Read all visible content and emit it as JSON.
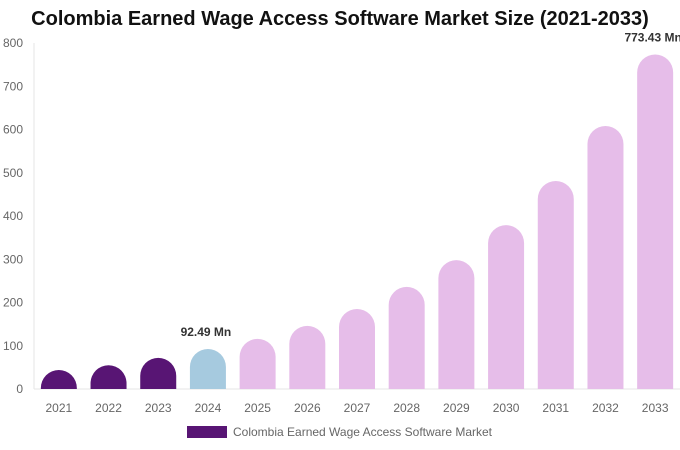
{
  "chart_data": {
    "type": "bar",
    "title": "Colombia Earned Wage Access Software Market Size (2021-2033)",
    "categories": [
      "2021",
      "2022",
      "2023",
      "2024",
      "2025",
      "2026",
      "2027",
      "2028",
      "2029",
      "2030",
      "2031",
      "2032",
      "2033"
    ],
    "series": [
      {
        "name": "Colombia Earned Wage Access Software Market",
        "values": [
          44,
          55,
          72,
          92.49,
          116,
          146,
          185,
          236,
          298,
          379,
          481,
          608,
          773.43
        ]
      }
    ],
    "data_labels": {
      "3": "92.49 Mn",
      "12": "773.43 Mn"
    },
    "ylim": [
      0,
      800
    ],
    "yticks": [
      0,
      100,
      200,
      300,
      400,
      500,
      600,
      700,
      800
    ],
    "xlabel": "",
    "ylabel": "",
    "grid": false,
    "legend": "bottom",
    "colors": {
      "historical": "#581574",
      "base_year": "#a6cadf",
      "forecast": "#e6bde9"
    },
    "bar_color_by_index": [
      "historical",
      "historical",
      "historical",
      "base_year",
      "forecast",
      "forecast",
      "forecast",
      "forecast",
      "forecast",
      "forecast",
      "forecast",
      "forecast",
      "forecast"
    ]
  }
}
